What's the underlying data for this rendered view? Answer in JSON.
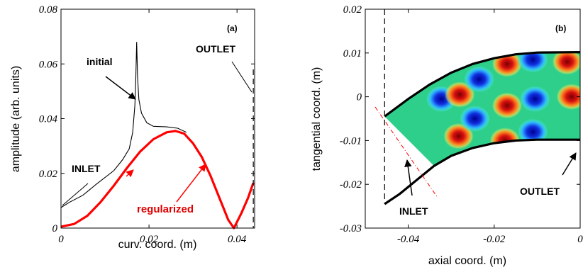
{
  "chart_data": [
    {
      "type": "line",
      "panel_label": "(a)",
      "xlabel": "curv. coord. (m)",
      "ylabel": "amplitude (arb. units)",
      "xlim": [
        0,
        0.044
      ],
      "ylim": [
        0,
        0.08
      ],
      "x_ticks": [
        "0",
        "0.02",
        "0.04"
      ],
      "x_tick_values": [
        0,
        0.02,
        0.04
      ],
      "y_ticks": [
        "0",
        "0.02",
        "0.04",
        "0.06",
        "0.08"
      ],
      "y_tick_values": [
        0,
        0.02,
        0.04,
        0.06,
        0.08
      ],
      "grid": false,
      "series": [
        {
          "color": "#000000",
          "points": [
            [
              0,
              0.0075
            ],
            [
              0.002,
              0.0095
            ],
            [
              0.005,
              0.012
            ],
            [
              0.008,
              0.016
            ],
            [
              0.012,
              0.021
            ],
            [
              0.014,
              0.025
            ],
            [
              0.0155,
              0.029
            ],
            [
              0.0163,
              0.035
            ],
            [
              0.0168,
              0.045
            ],
            [
              0.017,
              0.055
            ],
            [
              0.0172,
              0.068
            ],
            [
              0.0174,
              0.055
            ],
            [
              0.0177,
              0.047
            ],
            [
              0.0183,
              0.042
            ],
            [
              0.0195,
              0.0385
            ],
            [
              0.021,
              0.0372
            ],
            [
              0.024,
              0.037
            ],
            [
              0.0265,
              0.0365
            ],
            [
              0.0285,
              0.035
            ]
          ]
        },
        {
          "color": "#ff0000",
          "points": [
            [
              0,
              0.0005
            ],
            [
              0.003,
              0.0015
            ],
            [
              0.006,
              0.0045
            ],
            [
              0.009,
              0.0095
            ],
            [
              0.012,
              0.0155
            ],
            [
              0.015,
              0.022
            ],
            [
              0.018,
              0.028
            ],
            [
              0.021,
              0.0325
            ],
            [
              0.024,
              0.035
            ],
            [
              0.026,
              0.0355
            ],
            [
              0.028,
              0.0345
            ],
            [
              0.03,
              0.031
            ],
            [
              0.032,
              0.026
            ],
            [
              0.034,
              0.019
            ],
            [
              0.036,
              0.011
            ],
            [
              0.038,
              0.003
            ],
            [
              0.0393,
              0.0
            ],
            [
              0.041,
              0.0055
            ],
            [
              0.0425,
              0.011
            ],
            [
              0.0437,
              0.0165
            ]
          ]
        }
      ],
      "vertical_dashed_x": 0.0437,
      "annotations": [
        {
          "text": "initial",
          "color": "#000000"
        },
        {
          "text": "INLET",
          "color": "#000000"
        },
        {
          "text": "OUTLET",
          "color": "#000000"
        },
        {
          "text": "regularized",
          "color": "#ff0000"
        }
      ]
    },
    {
      "type": "heatmap",
      "panel_label": "(b)",
      "xlabel": "axial coord. (m)",
      "ylabel": "tangential coord. (m)",
      "xlim": [
        -0.05,
        0
      ],
      "ylim": [
        -0.03,
        0.02
      ],
      "x_ticks": [
        "-0.04",
        "-0.02",
        "0"
      ],
      "x_tick_values": [
        -0.04,
        -0.02,
        0
      ],
      "y_ticks": [
        "-0.03",
        "-0.02",
        "-0.01",
        "0",
        "0.01",
        "0.02"
      ],
      "y_tick_values": [
        -0.03,
        -0.02,
        -0.01,
        0,
        0.01,
        0.02
      ],
      "grid": false,
      "upper_wall": [
        [
          -0.0455,
          -0.0045
        ],
        [
          -0.04,
          -0.0005
        ],
        [
          -0.035,
          0.0028
        ],
        [
          -0.03,
          0.0055
        ],
        [
          -0.025,
          0.0075
        ],
        [
          -0.02,
          0.0088
        ],
        [
          -0.015,
          0.0097
        ],
        [
          -0.01,
          0.0101
        ],
        [
          0,
          0.0102
        ]
      ],
      "lower_wall": [
        [
          -0.0455,
          -0.0245
        ],
        [
          -0.042,
          -0.0222
        ],
        [
          -0.038,
          -0.019
        ],
        [
          -0.034,
          -0.0158
        ],
        [
          -0.03,
          -0.0135
        ],
        [
          -0.025,
          -0.0117
        ],
        [
          -0.02,
          -0.0106
        ],
        [
          -0.015,
          -0.01
        ],
        [
          -0.01,
          -0.0098
        ],
        [
          0,
          -0.0098
        ]
      ],
      "vertical_dashed_x": -0.0455,
      "mode_lobes": [
        {
          "x": -0.0323,
          "y": -0.0005,
          "sign": -1
        },
        {
          "x": -0.028,
          "y": 0.0005,
          "sign": 1
        },
        {
          "x": -0.0283,
          "y": -0.009,
          "sign": 1
        },
        {
          "x": -0.0235,
          "y": 0.004,
          "sign": -1
        },
        {
          "x": -0.0245,
          "y": -0.005,
          "sign": -1
        },
        {
          "x": -0.017,
          "y": 0.0075,
          "sign": 1
        },
        {
          "x": -0.017,
          "y": -0.002,
          "sign": 1
        },
        {
          "x": -0.0175,
          "y": -0.01,
          "sign": 1
        },
        {
          "x": -0.011,
          "y": 0.0085,
          "sign": -1
        },
        {
          "x": -0.0105,
          "y": -0.0005,
          "sign": -1
        },
        {
          "x": -0.011,
          "y": -0.008,
          "sign": -1
        },
        {
          "x": -0.003,
          "y": 0.008,
          "sign": 1
        },
        {
          "x": -0.002,
          "y": 0.0,
          "sign": 1
        }
      ],
      "annotations": [
        {
          "text": "INLET",
          "color": "#000000"
        },
        {
          "text": "OUTLET",
          "color": "#000000"
        }
      ],
      "colors": {
        "positive": "#b00000",
        "negative": "#0010b0",
        "background": "#2ecf8a"
      }
    }
  ]
}
